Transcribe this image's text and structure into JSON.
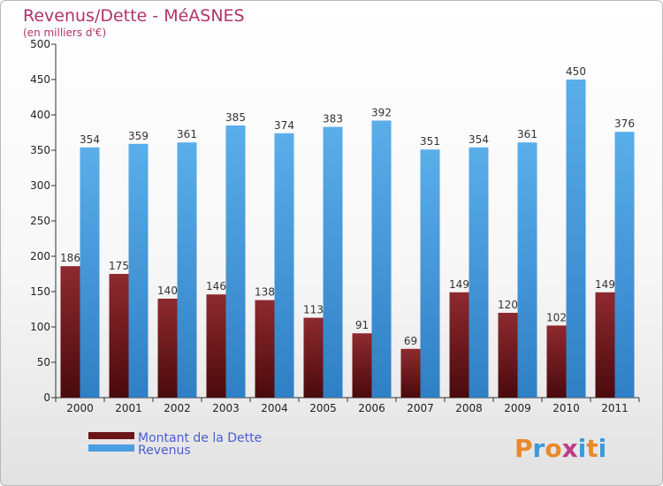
{
  "chart_data": {
    "type": "bar",
    "title": "Revenus/Dette - MéASNES",
    "subtitle": "(en milliers d'€)",
    "categories": [
      "2000",
      "2001",
      "2002",
      "2003",
      "2004",
      "2005",
      "2006",
      "2007",
      "2008",
      "2009",
      "2010",
      "2011"
    ],
    "series": [
      {
        "name": "Montant de la Dette",
        "color": "#7a1e22",
        "values": [
          186,
          175,
          140,
          146,
          138,
          113,
          91,
          69,
          149,
          120,
          102,
          149
        ]
      },
      {
        "name": "Revenus",
        "color": "#4a9ee0",
        "values": [
          354,
          359,
          361,
          385,
          374,
          383,
          392,
          351,
          354,
          361,
          450,
          376
        ]
      }
    ],
    "ylim": [
      0,
      500
    ],
    "yticks": [
      0,
      50,
      100,
      150,
      200,
      250,
      300,
      350,
      400,
      450,
      500
    ],
    "grid": false,
    "legend": "bottom-left"
  },
  "logo": {
    "text": "Proxiti",
    "colors": [
      "#e8892a",
      "#3a9ad9",
      "#e8892a",
      "#c03a8a",
      "#3a9ad9",
      "#e8892a",
      "#3a9ad9"
    ]
  }
}
